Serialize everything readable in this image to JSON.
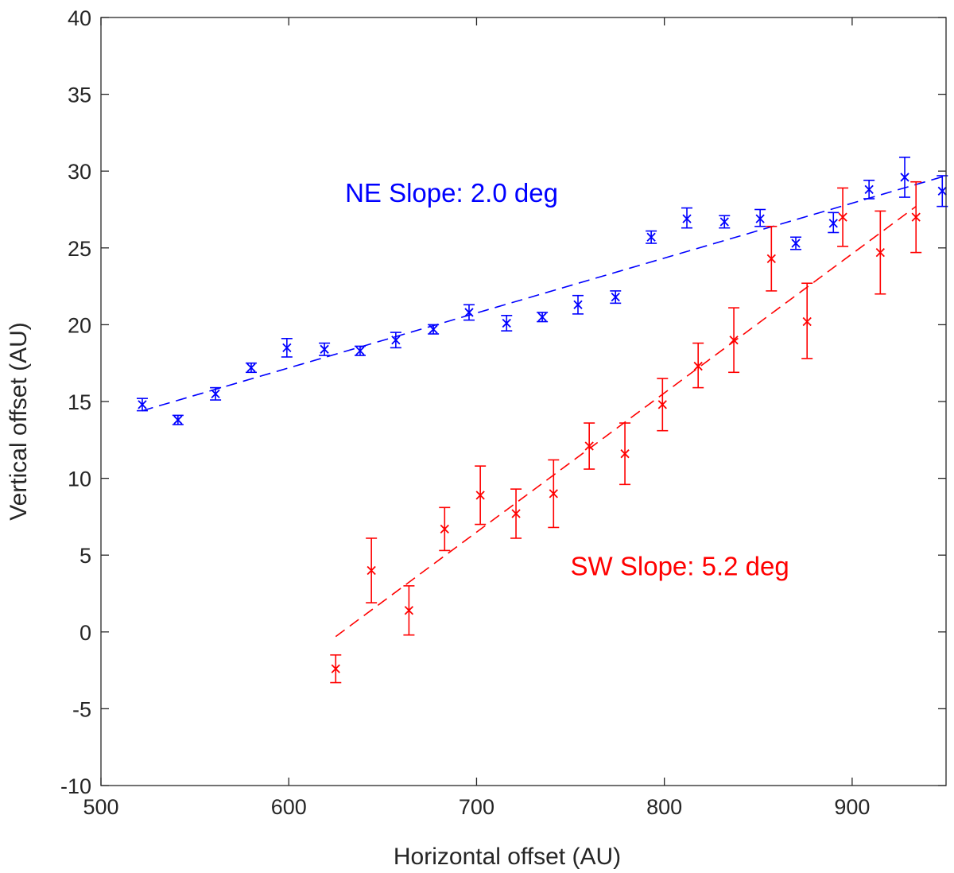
{
  "chart_data": {
    "type": "scatter",
    "title": "",
    "xlabel": "Horizontal offset (AU)",
    "ylabel": "Vertical offset (AU)",
    "xlim": [
      500,
      950
    ],
    "ylim": [
      -10,
      40
    ],
    "xticks": [
      500,
      600,
      700,
      800,
      900
    ],
    "yticks": [
      -10,
      -5,
      0,
      5,
      10,
      15,
      20,
      25,
      30,
      35,
      40
    ],
    "grid": false,
    "series": [
      {
        "name": "NE",
        "color": "#0000ff",
        "marker": "x",
        "x": [
          522,
          541,
          561,
          580,
          599,
          619,
          638,
          657,
          677,
          696,
          716,
          735,
          754,
          774,
          793,
          812,
          832,
          851,
          870,
          890,
          909,
          928,
          948
        ],
        "y": [
          14.8,
          13.8,
          15.5,
          17.2,
          18.5,
          18.4,
          18.3,
          19.0,
          19.7,
          20.8,
          20.1,
          20.5,
          21.3,
          21.8,
          25.7,
          26.9,
          26.7,
          26.9,
          25.3,
          26.6,
          28.8,
          29.6,
          28.7
        ],
        "err_low": [
          0.4,
          0.3,
          0.4,
          0.3,
          0.6,
          0.4,
          0.3,
          0.5,
          0.3,
          0.5,
          0.5,
          0.3,
          0.6,
          0.4,
          0.4,
          0.6,
          0.4,
          0.5,
          0.4,
          0.6,
          0.6,
          1.3,
          1.0
        ],
        "err_high": [
          0.4,
          0.3,
          0.4,
          0.3,
          0.6,
          0.4,
          0.3,
          0.5,
          0.3,
          0.5,
          0.5,
          0.3,
          0.6,
          0.4,
          0.4,
          0.7,
          0.4,
          0.6,
          0.4,
          0.7,
          0.6,
          1.3,
          1.0
        ],
        "fit": {
          "x": [
            522,
            950
          ],
          "y": [
            14.4,
            29.7
          ]
        },
        "annotation": "NE Slope: 2.0 deg",
        "annotation_at": [
          630,
          28.0
        ]
      },
      {
        "name": "SW",
        "color": "#ff0000",
        "marker": "x",
        "x": [
          625,
          644,
          664,
          683,
          702,
          721,
          741,
          760,
          779,
          799,
          818,
          837,
          857,
          876,
          895,
          915,
          934
        ],
        "y": [
          -2.4,
          4.0,
          1.4,
          6.7,
          8.9,
          7.7,
          9.0,
          12.1,
          11.6,
          14.8,
          17.3,
          19.0,
          24.3,
          20.2,
          27.0,
          24.7,
          27.0
        ],
        "err_low": [
          0.9,
          2.1,
          1.6,
          1.4,
          1.9,
          1.6,
          2.2,
          1.5,
          2.0,
          1.7,
          1.4,
          2.1,
          2.1,
          2.4,
          1.9,
          2.7,
          2.3
        ],
        "err_high": [
          0.9,
          2.1,
          1.6,
          1.4,
          1.9,
          1.6,
          2.2,
          1.5,
          2.0,
          1.7,
          1.5,
          2.1,
          2.1,
          2.5,
          1.9,
          2.7,
          2.3
        ],
        "fit": {
          "x": [
            625,
            934
          ],
          "y": [
            -0.3,
            27.7
          ]
        },
        "annotation": "SW Slope: 5.2 deg",
        "annotation_at": [
          750,
          3.7
        ]
      }
    ]
  }
}
